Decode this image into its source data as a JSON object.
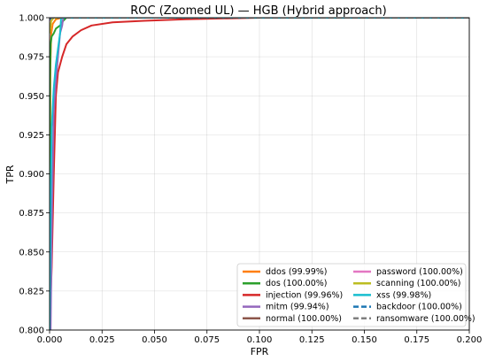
{
  "chart_data": {
    "type": "line",
    "title": "ROC (Zoomed UL) — HGB (Hybrid approach)",
    "xlabel": "FPR",
    "ylabel": "TPR",
    "xlim": [
      0.0,
      0.2
    ],
    "ylim": [
      0.8,
      1.0
    ],
    "xticks": [
      "0.000",
      "0.025",
      "0.050",
      "0.075",
      "0.100",
      "0.125",
      "0.150",
      "0.175",
      "0.200"
    ],
    "yticks": [
      "0.800",
      "0.825",
      "0.850",
      "0.875",
      "0.900",
      "0.925",
      "0.950",
      "0.975",
      "1.000"
    ],
    "grid": true,
    "legend_position": "lower-right",
    "legend_columns": 2,
    "series": [
      {
        "name": "ddos (99.99%)",
        "color": "#ff7f0e",
        "dash": "solid",
        "points": [
          [
            0,
            0.8
          ],
          [
            0.0004,
            0.97
          ],
          [
            0.0008,
            0.99
          ],
          [
            0.0015,
            0.996
          ],
          [
            0.003,
            0.999
          ],
          [
            0.006,
            1.0
          ],
          [
            0.2,
            1.0
          ]
        ]
      },
      {
        "name": "dos (100.00%)",
        "color": "#2ca02c",
        "dash": "solid",
        "points": [
          [
            0,
            0.8
          ],
          [
            0.0002,
            0.96
          ],
          [
            0.0005,
            0.983
          ],
          [
            0.001,
            0.988
          ],
          [
            0.002,
            0.99
          ],
          [
            0.003,
            0.993
          ],
          [
            0.005,
            0.995
          ],
          [
            0.0065,
            0.998
          ],
          [
            0.008,
            1.0
          ],
          [
            0.2,
            1.0
          ]
        ]
      },
      {
        "name": "injection (99.96%)",
        "color": "#d62728",
        "dash": "solid",
        "points": [
          [
            0,
            0.8
          ],
          [
            0.001,
            0.84
          ],
          [
            0.002,
            0.9
          ],
          [
            0.003,
            0.95
          ],
          [
            0.004,
            0.965
          ],
          [
            0.006,
            0.975
          ],
          [
            0.008,
            0.983
          ],
          [
            0.011,
            0.988
          ],
          [
            0.015,
            0.992
          ],
          [
            0.02,
            0.995
          ],
          [
            0.03,
            0.997
          ],
          [
            0.045,
            0.998
          ],
          [
            0.065,
            0.999
          ],
          [
            0.1,
            1.0
          ],
          [
            0.2,
            1.0
          ]
        ]
      },
      {
        "name": "mitm (99.94%)",
        "color": "#9467bd",
        "dash": "solid",
        "points": [
          [
            0.0005,
            0.8
          ],
          [
            0.0012,
            0.88
          ],
          [
            0.002,
            0.94
          ],
          [
            0.003,
            0.96
          ],
          [
            0.004,
            0.975
          ],
          [
            0.005,
            0.99
          ],
          [
            0.006,
            0.995
          ],
          [
            0.0065,
            1.0
          ],
          [
            0.2,
            1.0
          ]
        ]
      },
      {
        "name": "normal (100.00%)",
        "color": "#8c564b",
        "dash": "solid",
        "points": [
          [
            0,
            0.999
          ],
          [
            0.001,
            1.0
          ],
          [
            0.2,
            1.0
          ]
        ]
      },
      {
        "name": "password (100.00%)",
        "color": "#e377c2",
        "dash": "solid",
        "points": [
          [
            0,
            0.998
          ],
          [
            0.0005,
            1.0
          ],
          [
            0.2,
            1.0
          ]
        ]
      },
      {
        "name": "scanning (100.00%)",
        "color": "#bcbd22",
        "dash": "solid",
        "points": [
          [
            0,
            0.99
          ],
          [
            0.0008,
            0.998
          ],
          [
            0.002,
            1.0
          ],
          [
            0.2,
            1.0
          ]
        ]
      },
      {
        "name": "xss (99.98%)",
        "color": "#17becf",
        "dash": "solid",
        "points": [
          [
            0,
            0.8
          ],
          [
            0.0005,
            0.88
          ],
          [
            0.001,
            0.93
          ],
          [
            0.002,
            0.955
          ],
          [
            0.003,
            0.97
          ],
          [
            0.004,
            0.98
          ],
          [
            0.005,
            0.99
          ],
          [
            0.0055,
            1.0
          ],
          [
            0.2,
            1.0
          ]
        ]
      },
      {
        "name": "backdoor (100.00%)",
        "color": "#1f77b4",
        "dash": "dashed",
        "points": [
          [
            0,
            0.999
          ],
          [
            0.001,
            1.0
          ],
          [
            0.2,
            1.0
          ]
        ]
      },
      {
        "name": "ransomware (100.00%)",
        "color": "#7f7f7f",
        "dash": "dashed",
        "points": [
          [
            0,
            1.0
          ],
          [
            0.2,
            1.0
          ]
        ]
      }
    ]
  }
}
